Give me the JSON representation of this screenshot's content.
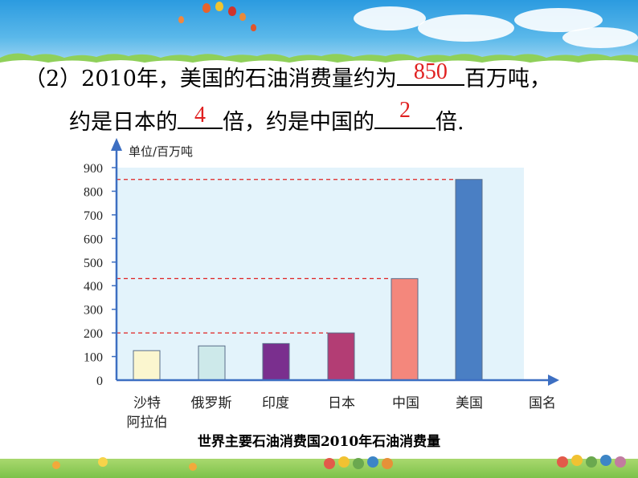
{
  "question": {
    "line1_prefix": "（2）2010年，美国的石油消费量约为",
    "line1_answer": "850",
    "line1_suffix": "百万吨，",
    "line2_a": "约是日本的",
    "line2_answer1": "4",
    "line2_b": "倍，约是中国的",
    "line2_answer2": "2",
    "line2_c": "倍."
  },
  "chart_data": {
    "type": "bar",
    "title": "世界主要石油消费国2010年石油消费量",
    "ylabel": "单位/百万吨",
    "xlabel": "国名",
    "categories": [
      "沙特\n阿拉伯",
      "俄罗斯",
      "印度",
      "日本",
      "中国",
      "美国"
    ],
    "values": [
      125,
      145,
      155,
      200,
      430,
      850
    ],
    "colors": [
      "#fbf6cf",
      "#cde9ea",
      "#7a2f8e",
      "#b33d74",
      "#f4877c",
      "#4a7fc4"
    ],
    "ylim": [
      0,
      900
    ],
    "yticks": [
      0,
      100,
      200,
      300,
      400,
      500,
      600,
      700,
      800,
      900
    ],
    "reference_lines": [
      200,
      430,
      850
    ],
    "grid": false,
    "background": "#e3f3fb"
  },
  "colors": {
    "answer": "#e02020",
    "axis": "#3d6fc2",
    "dashed": "#e02020"
  }
}
